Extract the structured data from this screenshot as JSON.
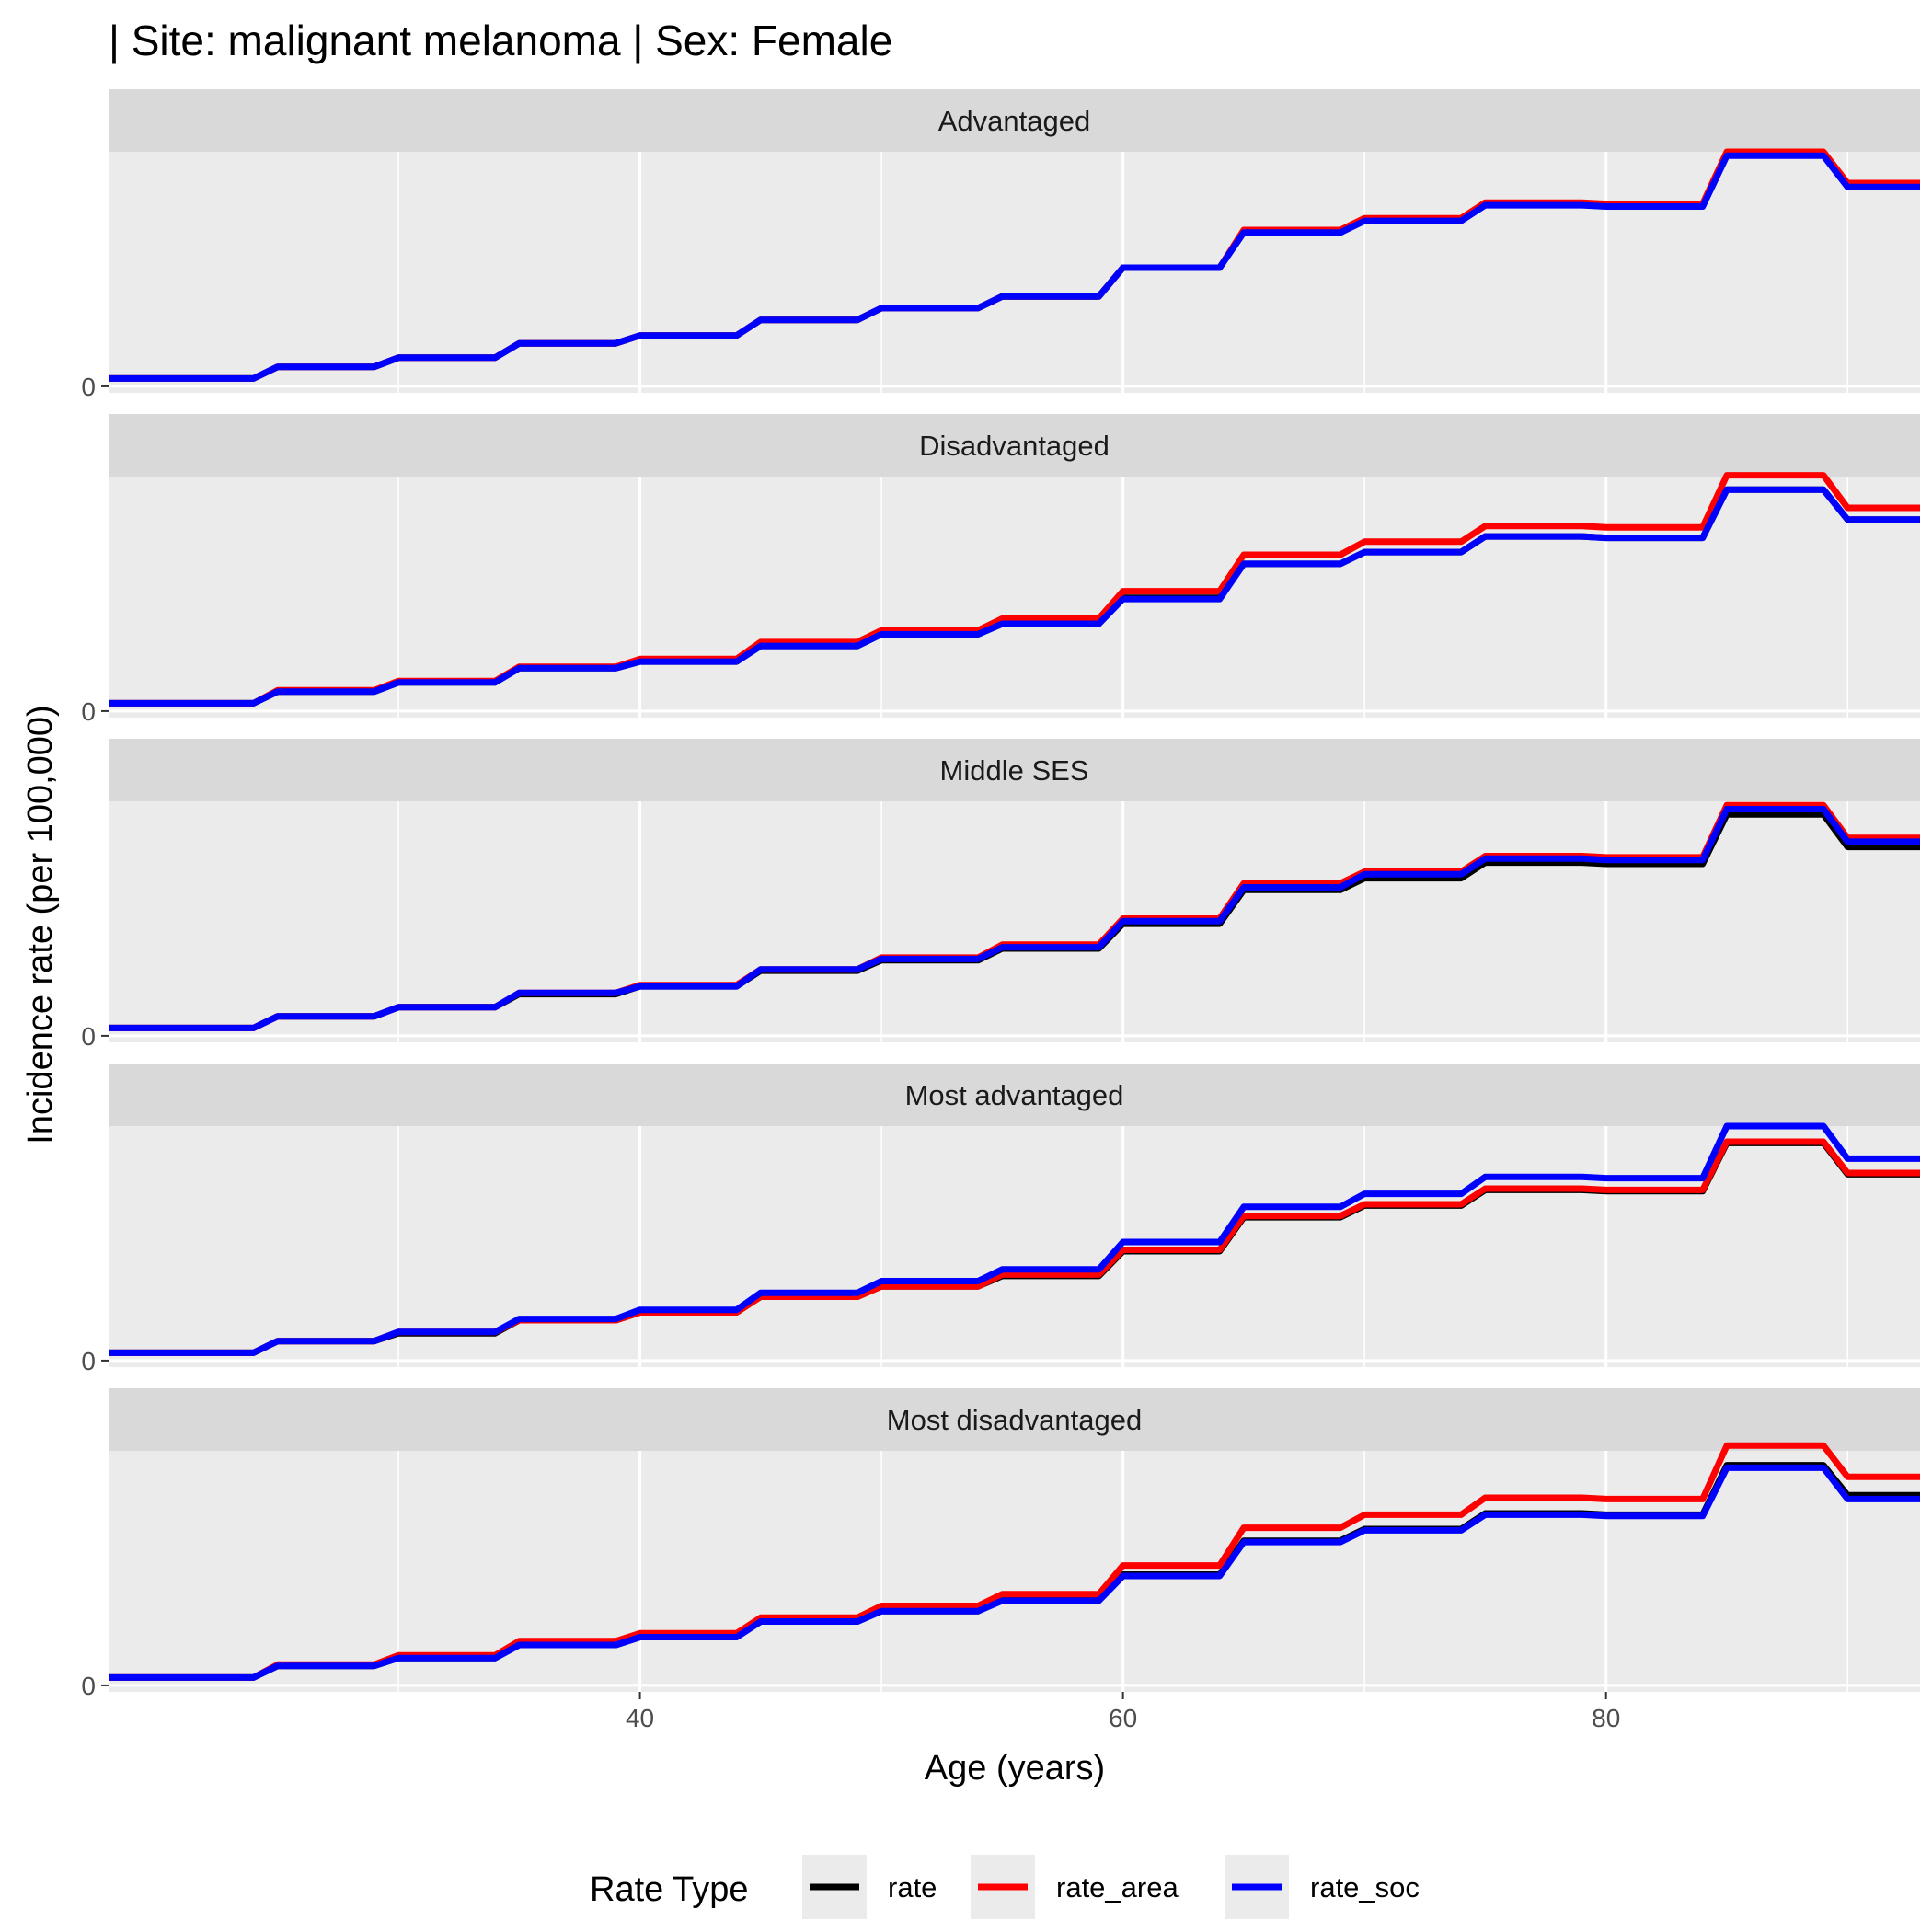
{
  "chart_data": {
    "type": "line",
    "title": "| Site: malignant melanoma | Sex: Female",
    "xlabel": "Age (years)",
    "ylabel": "Incidence rate (per 100,000)",
    "x_ticks": [
      40,
      60,
      80
    ],
    "y_ticks": [
      0
    ],
    "xlim": [
      18,
      93
    ],
    "ylim_per_panel": [
      -5,
      180
    ],
    "grid": true,
    "legend": {
      "title": "Rate Type",
      "position": "bottom",
      "entries": [
        {
          "name": "rate",
          "color": "#000000"
        },
        {
          "name": "rate_area",
          "color": "#ff0000"
        },
        {
          "name": "rate_soc",
          "color": "#0000ff"
        }
      ]
    },
    "age_groups": [
      [
        18,
        24
      ],
      [
        25,
        29
      ],
      [
        30,
        34
      ],
      [
        35,
        39
      ],
      [
        40,
        44
      ],
      [
        45,
        49
      ],
      [
        50,
        54
      ],
      [
        55,
        59
      ],
      [
        60,
        64
      ],
      [
        65,
        69
      ],
      [
        70,
        74
      ],
      [
        75,
        79
      ],
      [
        80,
        84
      ],
      [
        85,
        89
      ],
      [
        90,
        93
      ]
    ],
    "panels": [
      {
        "name": "Advantaged",
        "series": [
          {
            "name": "rate",
            "values": [
              6,
              15,
              22,
              33,
              39,
              51,
              60,
              69,
              91,
              119,
              128,
              140,
              139,
              179,
              155
            ]
          },
          {
            "name": "rate_area",
            "values": [
              6,
              15,
              22,
              33,
              39,
              51,
              60,
              69,
              91,
              120,
              129,
              141,
              140,
              180,
              156
            ]
          },
          {
            "name": "rate_soc",
            "values": [
              6,
              15,
              22,
              33,
              39,
              51,
              60,
              69,
              91,
              118,
              127,
              139,
              138,
              177,
              153
            ]
          }
        ]
      },
      {
        "name": "Disadvantaged",
        "series": [
          {
            "name": "rate",
            "values": [
              6,
              15,
              22,
              33,
              38,
              50,
              59,
              67,
              87,
              113,
              122,
              134,
              133,
              170,
              147
            ]
          },
          {
            "name": "rate_area",
            "values": [
              6,
              16,
              23,
              34,
              40,
              53,
              62,
              71,
              92,
              120,
              130,
              142,
              141,
              181,
              156
            ]
          },
          {
            "name": "rate_soc",
            "values": [
              6,
              15,
              22,
              33,
              38,
              50,
              59,
              67,
              86,
              113,
              122,
              134,
              133,
              170,
              147
            ]
          }
        ]
      },
      {
        "name": "Middle SES",
        "series": [
          {
            "name": "rate",
            "values": [
              6,
              15,
              22,
              32,
              38,
              50,
              58,
              67,
              86,
              112,
              121,
              133,
              132,
              170,
              145
            ]
          },
          {
            "name": "rate_area",
            "values": [
              6,
              15,
              22,
              33,
              39,
              51,
              60,
              70,
              90,
              117,
              126,
              138,
              137,
              177,
              152
            ]
          },
          {
            "name": "rate_soc",
            "values": [
              6,
              15,
              22,
              33,
              38,
              51,
              59,
              68,
              88,
              114,
              124,
              136,
              135,
              174,
              149
            ]
          }
        ]
      },
      {
        "name": "Most advantaged",
        "series": [
          {
            "name": "rate",
            "values": [
              6,
              15,
              21,
              31,
              37,
              49,
              57,
              65,
              84,
              110,
              119,
              131,
              130,
              167,
              143
            ]
          },
          {
            "name": "rate_area",
            "values": [
              6,
              15,
              22,
              31,
              37,
              49,
              57,
              66,
              85,
              111,
              120,
              132,
              131,
              168,
              144
            ]
          },
          {
            "name": "rate_soc",
            "values": [
              6,
              15,
              22,
              32,
              39,
              52,
              61,
              70,
              91,
              118,
              128,
              141,
              140,
              180,
              155
            ]
          }
        ]
      },
      {
        "name": "Most disadvantaged",
        "series": [
          {
            "name": "rate",
            "values": [
              6,
              15,
              21,
              31,
              37,
              49,
              57,
              66,
              85,
              111,
              120,
              132,
              131,
              169,
              146
            ]
          },
          {
            "name": "rate_area",
            "values": [
              6,
              16,
              23,
              34,
              40,
              52,
              61,
              70,
              92,
              121,
              131,
              144,
              143,
              184,
              160
            ]
          },
          {
            "name": "rate_soc",
            "values": [
              6,
              15,
              21,
              31,
              37,
              49,
              57,
              65,
              84,
              110,
              119,
              131,
              130,
              167,
              143
            ]
          }
        ]
      }
    ]
  }
}
